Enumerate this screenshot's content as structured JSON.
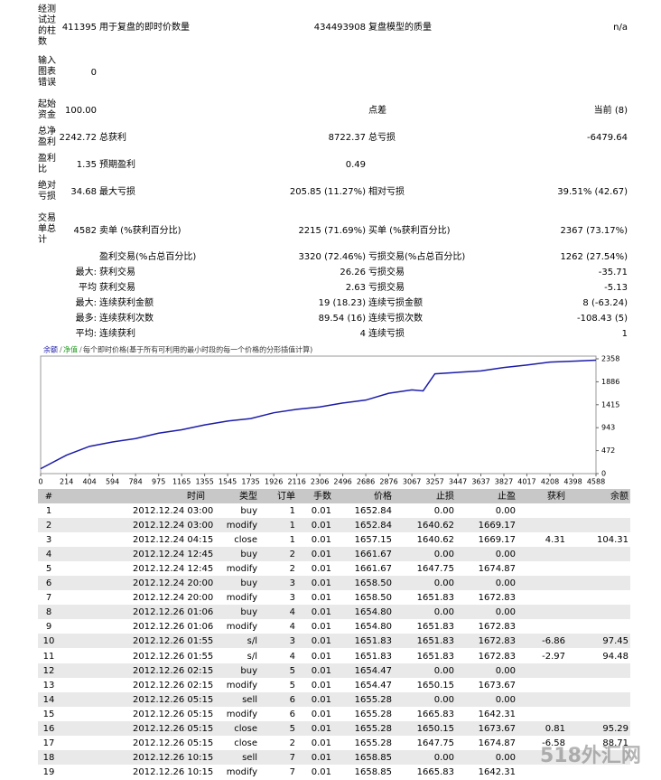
{
  "summary": {
    "rows": [
      [
        "经测试过的柱数",
        "411395",
        "用于复盘的即时价数量",
        "434493908",
        "复盘模型的质量",
        "n/a"
      ],
      [
        "输入图表错误",
        "0",
        null,
        null,
        null,
        null
      ],
      [
        "起始资金",
        "100.00",
        null,
        null,
        "点差",
        "当前 (8)"
      ],
      [
        "总净盈利",
        "2242.72",
        "总获利",
        "8722.37",
        "总亏损",
        "-6479.64"
      ],
      [
        "盈利比",
        "1.35",
        "预期盈利",
        "0.49",
        null,
        null
      ],
      [
        "绝对亏损",
        "34.68",
        "最大亏损",
        "205.85 (11.27%)",
        "相对亏损",
        "39.51% (42.67)"
      ],
      [
        "交易单总计",
        "4582",
        "卖单 (%获利百分比)",
        "2215 (71.69%)",
        "买单 (%获利百分比)",
        "2367 (73.17%)"
      ],
      [
        null,
        null,
        "盈利交易(%占总百分比)",
        "3320 (72.46%)",
        "亏损交易(%占总百分比)",
        "1262 (27.54%)"
      ],
      [
        null,
        "最大:",
        "获利交易",
        "26.26",
        "亏损交易",
        "-35.71"
      ],
      [
        null,
        "平均",
        "获利交易",
        "2.63",
        "亏损交易",
        "-5.13"
      ],
      [
        null,
        "最大:",
        "连续获利金额",
        "19 (18.23)",
        "连续亏损金额",
        "8 (-63.24)"
      ],
      [
        null,
        "最多:",
        "连续获利次数",
        "89.54 (16)",
        "连续亏损次数",
        "-108.43 (5)"
      ],
      [
        null,
        "平均:",
        "连续获利",
        "4",
        "连续亏损",
        "1"
      ]
    ]
  },
  "chart_data": {
    "type": "line",
    "legend": [
      "余额",
      "净值",
      "每个即时价格(基于所有可利用的最小时段的每一个价格的分形插值计算)"
    ],
    "x": [
      0,
      214,
      404,
      594,
      784,
      975,
      1165,
      1355,
      1545,
      1735,
      1926,
      2116,
      2306,
      2496,
      2686,
      2876,
      3067,
      3160,
      3257,
      3447,
      3637,
      3827,
      4017,
      4208,
      4398,
      4588
    ],
    "series": [
      {
        "name": "余额",
        "color": "#1c1ca8",
        "values": [
          100,
          380,
          560,
          650,
          720,
          830,
          900,
          1000,
          1080,
          1130,
          1250,
          1320,
          1370,
          1450,
          1510,
          1650,
          1720,
          1700,
          2050,
          2080,
          2110,
          2180,
          2230,
          2290,
          2310,
          2330
        ]
      }
    ],
    "xlim": [
      0,
      4588
    ],
    "xticks": [
      0,
      214,
      404,
      594,
      784,
      975,
      1165,
      1355,
      1545,
      1735,
      1926,
      2116,
      2306,
      2496,
      2686,
      2876,
      3067,
      3257,
      3447,
      3637,
      3827,
      4017,
      4208,
      4398,
      4588
    ],
    "ylim": [
      0,
      2358
    ],
    "yticks": [
      0,
      472,
      943,
      1415,
      1886,
      2358
    ]
  },
  "trades": {
    "header": [
      "#",
      "时间",
      "类型",
      "订单",
      "手数",
      "价格",
      "止损",
      "止盈",
      "获利",
      "余额"
    ],
    "rows": [
      [
        "1",
        "2012.12.24 03:00",
        "buy",
        "1",
        "0.01",
        "1652.84",
        "0.00",
        "0.00",
        null,
        null
      ],
      [
        "2",
        "2012.12.24 03:00",
        "modify",
        "1",
        "0.01",
        "1652.84",
        "1640.62",
        "1669.17",
        null,
        null
      ],
      [
        "3",
        "2012.12.24 04:15",
        "close",
        "1",
        "0.01",
        "1657.15",
        "1640.62",
        "1669.17",
        "4.31",
        "104.31"
      ],
      [
        "4",
        "2012.12.24 12:45",
        "buy",
        "2",
        "0.01",
        "1661.67",
        "0.00",
        "0.00",
        null,
        null
      ],
      [
        "5",
        "2012.12.24 12:45",
        "modify",
        "2",
        "0.01",
        "1661.67",
        "1647.75",
        "1674.87",
        null,
        null
      ],
      [
        "6",
        "2012.12.24 20:00",
        "buy",
        "3",
        "0.01",
        "1658.50",
        "0.00",
        "0.00",
        null,
        null
      ],
      [
        "7",
        "2012.12.24 20:00",
        "modify",
        "3",
        "0.01",
        "1658.50",
        "1651.83",
        "1672.83",
        null,
        null
      ],
      [
        "8",
        "2012.12.26 01:06",
        "buy",
        "4",
        "0.01",
        "1654.80",
        "0.00",
        "0.00",
        null,
        null
      ],
      [
        "9",
        "2012.12.26 01:06",
        "modify",
        "4",
        "0.01",
        "1654.80",
        "1651.83",
        "1672.83",
        null,
        null
      ],
      [
        "10",
        "2012.12.26 01:55",
        "s/l",
        "3",
        "0.01",
        "1651.83",
        "1651.83",
        "1672.83",
        "-6.86",
        "97.45"
      ],
      [
        "11",
        "2012.12.26 01:55",
        "s/l",
        "4",
        "0.01",
        "1651.83",
        "1651.83",
        "1672.83",
        "-2.97",
        "94.48"
      ],
      [
        "12",
        "2012.12.26 02:15",
        "buy",
        "5",
        "0.01",
        "1654.47",
        "0.00",
        "0.00",
        null,
        null
      ],
      [
        "13",
        "2012.12.26 02:15",
        "modify",
        "5",
        "0.01",
        "1654.47",
        "1650.15",
        "1673.67",
        null,
        null
      ],
      [
        "14",
        "2012.12.26 05:15",
        "sell",
        "6",
        "0.01",
        "1655.28",
        "0.00",
        "0.00",
        null,
        null
      ],
      [
        "15",
        "2012.12.26 05:15",
        "modify",
        "6",
        "0.01",
        "1655.28",
        "1665.83",
        "1642.31",
        null,
        null
      ],
      [
        "16",
        "2012.12.26 05:15",
        "close",
        "5",
        "0.01",
        "1655.28",
        "1650.15",
        "1673.67",
        "0.81",
        "95.29"
      ],
      [
        "17",
        "2012.12.26 05:15",
        "close",
        "2",
        "0.01",
        "1655.28",
        "1647.75",
        "1674.87",
        "-6.58",
        "88.71"
      ],
      [
        "18",
        "2012.12.26 10:15",
        "sell",
        "7",
        "0.01",
        "1658.85",
        "0.00",
        "0.00",
        null,
        null
      ],
      [
        "19",
        "2012.12.26 10:15",
        "modify",
        "7",
        "0.01",
        "1658.85",
        "1665.83",
        "1642.31",
        null,
        null
      ]
    ]
  },
  "watermark": "518外汇网"
}
